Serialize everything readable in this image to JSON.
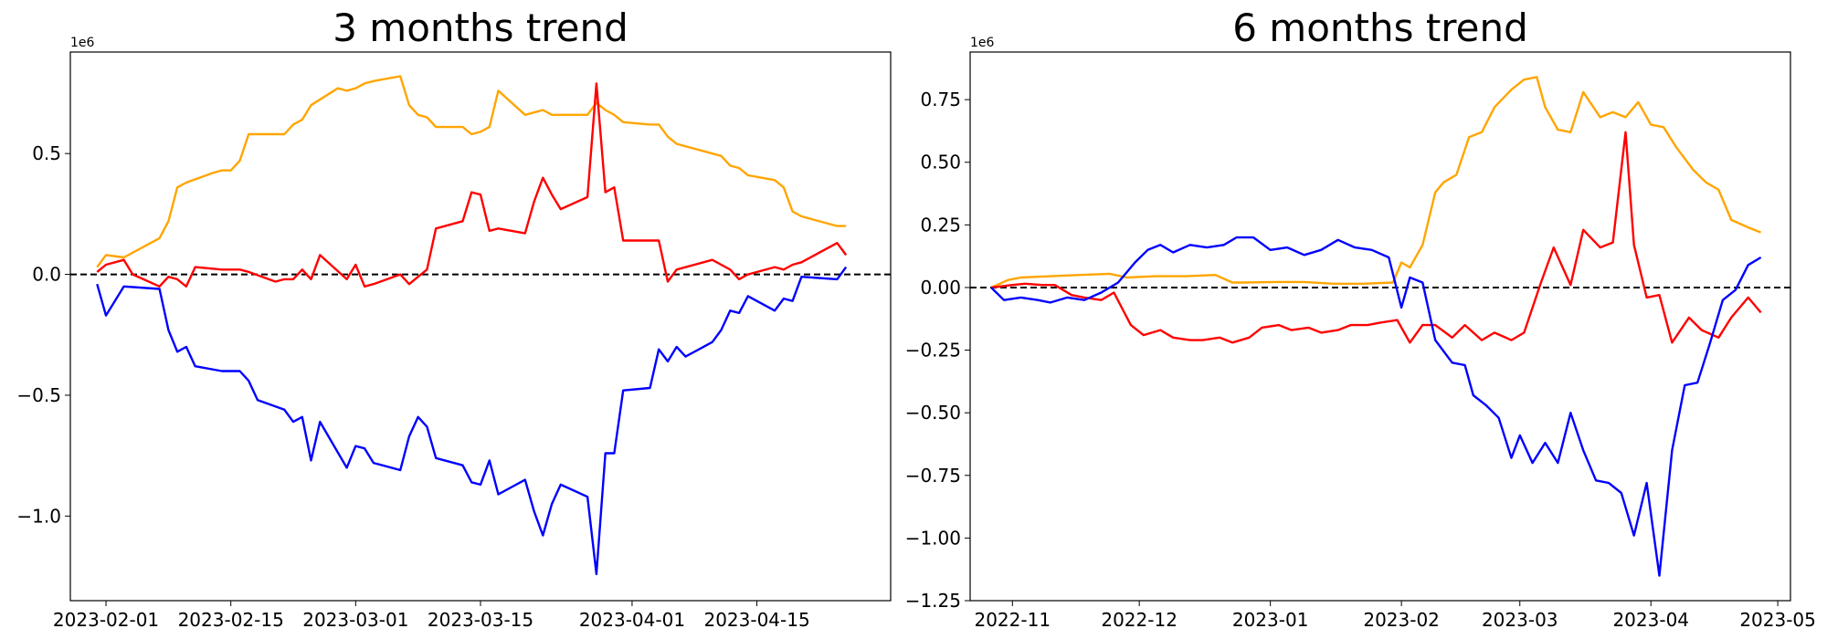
{
  "chart_data": [
    {
      "type": "line",
      "title": "3 months trend",
      "xlabel": "",
      "ylabel": "",
      "x_type": "date",
      "xlim": [
        "2023-01-28",
        "2023-04-30"
      ],
      "ylim": [
        -1.35,
        0.92
      ],
      "y_scale_label": "1e6",
      "grid": false,
      "x_ticks": [
        {
          "value": "2023-02-01",
          "label": "2023-02-01"
        },
        {
          "value": "2023-02-15",
          "label": "2023-02-15"
        },
        {
          "value": "2023-03-01",
          "label": "2023-03-01"
        },
        {
          "value": "2023-03-15",
          "label": "2023-03-15"
        },
        {
          "value": "2023-04-01",
          "label": "2023-04-01"
        },
        {
          "value": "2023-04-15",
          "label": "2023-04-15"
        }
      ],
      "y_ticks": [
        {
          "value": 0.5,
          "label": "0.5"
        },
        {
          "value": 0.0,
          "label": "0.0"
        },
        {
          "value": -0.5,
          "label": "−0.5"
        },
        {
          "value": -1.0,
          "label": "−1.0"
        }
      ],
      "reference_line": {
        "y": 0,
        "style": "dashed",
        "color": "#000000"
      },
      "series": [
        {
          "color": "#FFA500",
          "x": [
            "2023-01-31",
            "2023-02-01",
            "2023-02-03",
            "2023-02-07",
            "2023-02-08",
            "2023-02-09",
            "2023-02-10",
            "2023-02-13",
            "2023-02-14",
            "2023-02-15",
            "2023-02-16",
            "2023-02-17",
            "2023-02-21",
            "2023-02-22",
            "2023-02-23",
            "2023-02-24",
            "2023-02-27",
            "2023-02-28",
            "2023-03-01",
            "2023-03-02",
            "2023-03-03",
            "2023-03-06",
            "2023-03-07",
            "2023-03-08",
            "2023-03-09",
            "2023-03-10",
            "2023-03-13",
            "2023-03-14",
            "2023-03-15",
            "2023-03-16",
            "2023-03-17",
            "2023-03-20",
            "2023-03-21",
            "2023-03-22",
            "2023-03-23",
            "2023-03-24",
            "2023-03-27",
            "2023-03-28",
            "2023-03-29",
            "2023-03-30",
            "2023-03-31",
            "2023-04-03",
            "2023-04-04",
            "2023-04-05",
            "2023-04-06",
            "2023-04-10",
            "2023-04-11",
            "2023-04-12",
            "2023-04-13",
            "2023-04-14",
            "2023-04-17",
            "2023-04-18",
            "2023-04-19",
            "2023-04-20",
            "2023-04-21",
            "2023-04-24",
            "2023-04-25"
          ],
          "values": [
            0.03,
            0.08,
            0.07,
            0.15,
            0.22,
            0.36,
            0.38,
            0.42,
            0.43,
            0.43,
            0.47,
            0.58,
            0.58,
            0.62,
            0.64,
            0.7,
            0.77,
            0.76,
            0.77,
            0.79,
            0.8,
            0.82,
            0.7,
            0.66,
            0.65,
            0.61,
            0.61,
            0.58,
            0.59,
            0.61,
            0.76,
            0.66,
            0.67,
            0.68,
            0.66,
            0.66,
            0.66,
            0.71,
            0.68,
            0.66,
            0.63,
            0.62,
            0.62,
            0.57,
            0.54,
            0.5,
            0.49,
            0.45,
            0.44,
            0.41,
            0.39,
            0.36,
            0.26,
            0.24,
            0.23,
            0.2,
            0.2
          ]
        },
        {
          "color": "#FF0000",
          "x": [
            "2023-01-31",
            "2023-02-01",
            "2023-02-03",
            "2023-02-04",
            "2023-02-07",
            "2023-02-08",
            "2023-02-09",
            "2023-02-10",
            "2023-02-11",
            "2023-02-14",
            "2023-02-15",
            "2023-02-16",
            "2023-02-17",
            "2023-02-20",
            "2023-02-21",
            "2023-02-22",
            "2023-02-23",
            "2023-02-24",
            "2023-02-25",
            "2023-02-28",
            "2023-03-01",
            "2023-03-02",
            "2023-03-03",
            "2023-03-06",
            "2023-03-07",
            "2023-03-08",
            "2023-03-09",
            "2023-03-10",
            "2023-03-13",
            "2023-03-14",
            "2023-03-15",
            "2023-03-16",
            "2023-03-17",
            "2023-03-20",
            "2023-03-21",
            "2023-03-22",
            "2023-03-23",
            "2023-03-24",
            "2023-03-27",
            "2023-03-28",
            "2023-03-29",
            "2023-03-30",
            "2023-03-31",
            "2023-04-03",
            "2023-04-04",
            "2023-04-05",
            "2023-04-06",
            "2023-04-10",
            "2023-04-11",
            "2023-04-12",
            "2023-04-13",
            "2023-04-14",
            "2023-04-17",
            "2023-04-18",
            "2023-04-19",
            "2023-04-20",
            "2023-04-24",
            "2023-04-25"
          ],
          "values": [
            0.01,
            0.04,
            0.06,
            0.0,
            -0.05,
            -0.01,
            -0.02,
            -0.05,
            0.03,
            0.02,
            0.02,
            0.02,
            0.01,
            -0.03,
            -0.02,
            -0.02,
            0.02,
            -0.02,
            0.08,
            -0.02,
            0.04,
            -0.05,
            -0.04,
            0.0,
            -0.04,
            -0.01,
            0.02,
            0.19,
            0.22,
            0.34,
            0.33,
            0.18,
            0.19,
            0.17,
            0.3,
            0.4,
            0.33,
            0.27,
            0.32,
            0.79,
            0.34,
            0.36,
            0.14,
            0.14,
            0.14,
            -0.03,
            0.02,
            0.06,
            0.04,
            0.02,
            -0.02,
            0.0,
            0.03,
            0.02,
            0.04,
            0.05,
            0.13,
            0.08
          ]
        },
        {
          "color": "#0000FF",
          "x": [
            "2023-01-31",
            "2023-02-01",
            "2023-02-03",
            "2023-02-07",
            "2023-02-08",
            "2023-02-09",
            "2023-02-10",
            "2023-02-11",
            "2023-02-14",
            "2023-02-16",
            "2023-02-17",
            "2023-02-18",
            "2023-02-21",
            "2023-02-22",
            "2023-02-23",
            "2023-02-24",
            "2023-02-25",
            "2023-02-28",
            "2023-03-01",
            "2023-03-02",
            "2023-03-03",
            "2023-03-06",
            "2023-03-07",
            "2023-03-08",
            "2023-03-09",
            "2023-03-10",
            "2023-03-13",
            "2023-03-14",
            "2023-03-15",
            "2023-03-16",
            "2023-03-17",
            "2023-03-20",
            "2023-03-21",
            "2023-03-22",
            "2023-03-23",
            "2023-03-24",
            "2023-03-27",
            "2023-03-28",
            "2023-03-29",
            "2023-03-30",
            "2023-03-31",
            "2023-04-03",
            "2023-04-04",
            "2023-04-05",
            "2023-04-06",
            "2023-04-07",
            "2023-04-10",
            "2023-04-11",
            "2023-04-12",
            "2023-04-13",
            "2023-04-14",
            "2023-04-17",
            "2023-04-18",
            "2023-04-19",
            "2023-04-20",
            "2023-04-24",
            "2023-04-25"
          ],
          "values": [
            -0.04,
            -0.17,
            -0.05,
            -0.06,
            -0.23,
            -0.32,
            -0.3,
            -0.38,
            -0.4,
            -0.4,
            -0.44,
            -0.52,
            -0.56,
            -0.61,
            -0.59,
            -0.77,
            -0.61,
            -0.8,
            -0.71,
            -0.72,
            -0.78,
            -0.81,
            -0.67,
            -0.59,
            -0.63,
            -0.76,
            -0.79,
            -0.86,
            -0.87,
            -0.77,
            -0.91,
            -0.85,
            -0.98,
            -1.08,
            -0.95,
            -0.87,
            -0.92,
            -1.24,
            -0.74,
            -0.74,
            -0.48,
            -0.47,
            -0.31,
            -0.36,
            -0.3,
            -0.34,
            -0.28,
            -0.23,
            -0.15,
            -0.16,
            -0.09,
            -0.15,
            -0.1,
            -0.11,
            -0.01,
            -0.02,
            0.03
          ]
        }
      ]
    },
    {
      "type": "line",
      "title": "6 months trend",
      "xlabel": "",
      "ylabel": "",
      "x_type": "date",
      "xlim": [
        "2022-10-22",
        "2023-05-04"
      ],
      "ylim": [
        -1.25,
        0.94
      ],
      "y_scale_label": "1e6",
      "grid": false,
      "x_ticks": [
        {
          "value": "2022-11-01",
          "label": "2022-11"
        },
        {
          "value": "2022-12-01",
          "label": "2022-12"
        },
        {
          "value": "2023-01-01",
          "label": "2023-01"
        },
        {
          "value": "2023-02-01",
          "label": "2023-02"
        },
        {
          "value": "2023-03-01",
          "label": "2023-03"
        },
        {
          "value": "2023-04-01",
          "label": "2023-04"
        },
        {
          "value": "2023-05-01",
          "label": "2023-05"
        }
      ],
      "y_ticks": [
        {
          "value": 0.75,
          "label": "0.75"
        },
        {
          "value": 0.5,
          "label": "0.50"
        },
        {
          "value": 0.25,
          "label": "0.25"
        },
        {
          "value": 0.0,
          "label": "0.00"
        },
        {
          "value": -0.25,
          "label": "−0.25"
        },
        {
          "value": -0.5,
          "label": "−0.50"
        },
        {
          "value": -0.75,
          "label": "−0.75"
        },
        {
          "value": -1.0,
          "label": "−1.00"
        },
        {
          "value": -1.25,
          "label": "−1.25"
        }
      ],
      "reference_line": {
        "y": 0,
        "style": "dashed",
        "color": "#000000"
      },
      "series": [
        {
          "color": "#FFA500",
          "x": [
            "2022-10-27",
            "2022-10-31",
            "2022-11-03",
            "2022-11-10",
            "2022-11-17",
            "2022-11-24",
            "2022-11-28",
            "2022-12-05",
            "2022-12-12",
            "2022-12-19",
            "2022-12-23",
            "2022-12-26",
            "2023-01-02",
            "2023-01-09",
            "2023-01-16",
            "2023-01-23",
            "2023-01-30",
            "2023-02-01",
            "2023-02-03",
            "2023-02-06",
            "2023-02-09",
            "2023-02-11",
            "2023-02-14",
            "2023-02-17",
            "2023-02-20",
            "2023-02-23",
            "2023-02-27",
            "2023-03-02",
            "2023-03-05",
            "2023-03-07",
            "2023-03-10",
            "2023-03-13",
            "2023-03-16",
            "2023-03-20",
            "2023-03-23",
            "2023-03-26",
            "2023-03-29",
            "2023-04-01",
            "2023-04-04",
            "2023-04-07",
            "2023-04-11",
            "2023-04-14",
            "2023-04-17",
            "2023-04-20",
            "2023-04-24",
            "2023-04-27"
          ],
          "values": [
            0.0,
            0.03,
            0.04,
            0.045,
            0.05,
            0.055,
            0.04,
            0.045,
            0.045,
            0.05,
            0.02,
            0.02,
            0.022,
            0.022,
            0.015,
            0.015,
            0.02,
            0.1,
            0.08,
            0.17,
            0.38,
            0.42,
            0.45,
            0.6,
            0.62,
            0.72,
            0.79,
            0.83,
            0.84,
            0.72,
            0.63,
            0.62,
            0.78,
            0.68,
            0.7,
            0.68,
            0.74,
            0.65,
            0.64,
            0.56,
            0.47,
            0.42,
            0.39,
            0.27,
            0.24,
            0.22
          ]
        },
        {
          "color": "#FF0000",
          "x": [
            "2022-10-27",
            "2022-11-01",
            "2022-11-04",
            "2022-11-08",
            "2022-11-11",
            "2022-11-15",
            "2022-11-18",
            "2022-11-22",
            "2022-11-25",
            "2022-11-29",
            "2022-12-02",
            "2022-12-06",
            "2022-12-09",
            "2022-12-13",
            "2022-12-16",
            "2022-12-20",
            "2022-12-23",
            "2022-12-27",
            "2022-12-30",
            "2023-01-03",
            "2023-01-06",
            "2023-01-10",
            "2023-01-13",
            "2023-01-17",
            "2023-01-20",
            "2023-01-24",
            "2023-01-27",
            "2023-01-31",
            "2023-02-03",
            "2023-02-06",
            "2023-02-09",
            "2023-02-13",
            "2023-02-16",
            "2023-02-20",
            "2023-02-23",
            "2023-02-27",
            "2023-03-02",
            "2023-03-06",
            "2023-03-09",
            "2023-03-13",
            "2023-03-16",
            "2023-03-20",
            "2023-03-23",
            "2023-03-26",
            "2023-03-28",
            "2023-03-31",
            "2023-04-03",
            "2023-04-06",
            "2023-04-10",
            "2023-04-13",
            "2023-04-17",
            "2023-04-20",
            "2023-04-24",
            "2023-04-27"
          ],
          "values": [
            0.0,
            0.01,
            0.015,
            0.01,
            0.01,
            -0.03,
            -0.04,
            -0.05,
            -0.02,
            -0.15,
            -0.19,
            -0.17,
            -0.2,
            -0.21,
            -0.21,
            -0.2,
            -0.22,
            -0.2,
            -0.16,
            -0.15,
            -0.17,
            -0.16,
            -0.18,
            -0.17,
            -0.15,
            -0.15,
            -0.14,
            -0.13,
            -0.22,
            -0.15,
            -0.15,
            -0.2,
            -0.15,
            -0.21,
            -0.18,
            -0.21,
            -0.18,
            0.02,
            0.16,
            0.01,
            0.23,
            0.16,
            0.18,
            0.62,
            0.17,
            -0.04,
            -0.03,
            -0.22,
            -0.12,
            -0.17,
            -0.2,
            -0.12,
            -0.04,
            -0.1
          ]
        },
        {
          "color": "#0000FF",
          "x": [
            "2022-10-27",
            "2022-10-30",
            "2022-11-03",
            "2022-11-07",
            "2022-11-10",
            "2022-11-14",
            "2022-11-18",
            "2022-11-22",
            "2022-11-26",
            "2022-11-30",
            "2022-12-03",
            "2022-12-06",
            "2022-12-09",
            "2022-12-13",
            "2022-12-17",
            "2022-12-21",
            "2022-12-24",
            "2022-12-28",
            "2023-01-01",
            "2023-01-05",
            "2023-01-09",
            "2023-01-13",
            "2023-01-17",
            "2023-01-21",
            "2023-01-25",
            "2023-01-29",
            "2023-02-01",
            "2023-02-03",
            "2023-02-06",
            "2023-02-09",
            "2023-02-13",
            "2023-02-16",
            "2023-02-18",
            "2023-02-21",
            "2023-02-24",
            "2023-02-27",
            "2023-03-01",
            "2023-03-04",
            "2023-03-07",
            "2023-03-10",
            "2023-03-13",
            "2023-03-16",
            "2023-03-19",
            "2023-03-22",
            "2023-03-25",
            "2023-03-28",
            "2023-03-31",
            "2023-04-03",
            "2023-04-06",
            "2023-04-09",
            "2023-04-12",
            "2023-04-15",
            "2023-04-18",
            "2023-04-21",
            "2023-04-24",
            "2023-04-27"
          ],
          "values": [
            0.0,
            -0.05,
            -0.04,
            -0.05,
            -0.06,
            -0.04,
            -0.05,
            -0.02,
            0.02,
            0.1,
            0.15,
            0.17,
            0.14,
            0.17,
            0.16,
            0.17,
            0.2,
            0.2,
            0.15,
            0.16,
            0.13,
            0.15,
            0.19,
            0.16,
            0.15,
            0.12,
            -0.08,
            0.04,
            0.02,
            -0.21,
            -0.3,
            -0.31,
            -0.43,
            -0.47,
            -0.52,
            -0.68,
            -0.59,
            -0.7,
            -0.62,
            -0.7,
            -0.5,
            -0.65,
            -0.77,
            -0.78,
            -0.82,
            -0.99,
            -0.78,
            -1.15,
            -0.65,
            -0.39,
            -0.38,
            -0.22,
            -0.05,
            -0.01,
            0.09,
            0.12
          ]
        }
      ]
    }
  ]
}
